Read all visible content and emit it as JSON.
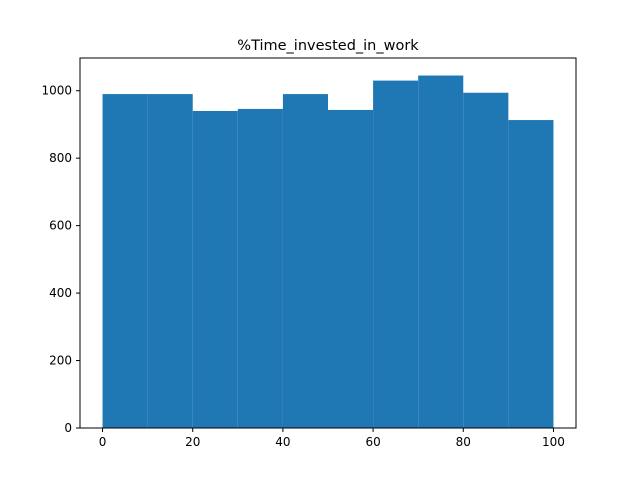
{
  "chart_data": {
    "type": "bar",
    "title": "%Time_invested_in_work",
    "xlabel": "",
    "ylabel": "",
    "bin_edges": [
      0,
      10,
      20,
      30,
      40,
      50,
      60,
      70,
      80,
      90,
      100
    ],
    "values": [
      990,
      990,
      940,
      946,
      990,
      943,
      1030,
      1045,
      994,
      913
    ],
    "xlim": [
      -5,
      105
    ],
    "ylim": [
      0,
      1097
    ],
    "x_ticks": [
      0,
      20,
      40,
      60,
      80,
      100
    ],
    "y_ticks": [
      0,
      200,
      400,
      600,
      800,
      1000
    ],
    "grid": false,
    "bar_color": "#1f77b4"
  }
}
